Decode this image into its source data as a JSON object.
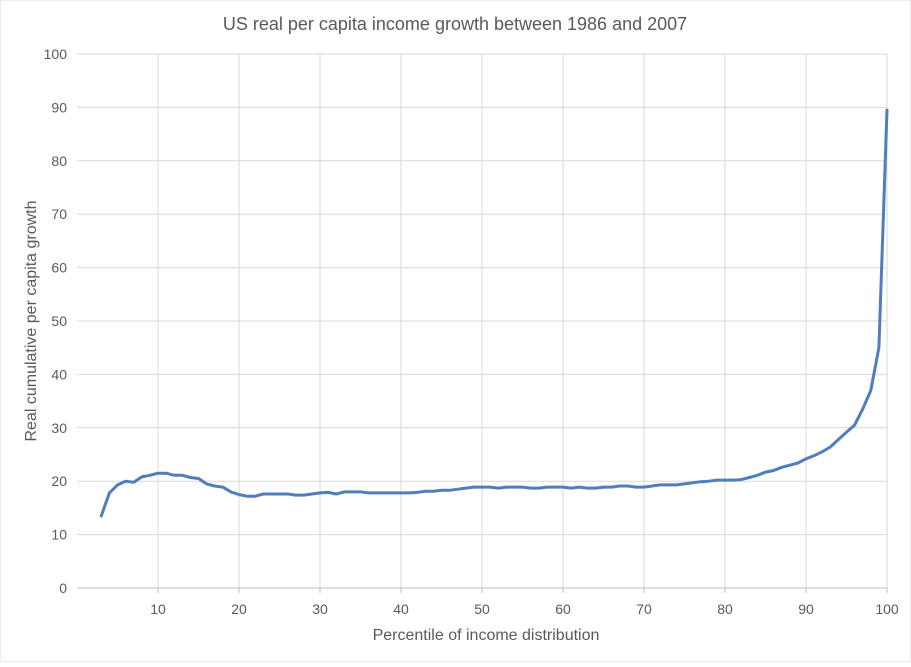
{
  "chart_data": {
    "type": "line",
    "title": "US real per capita income growth between 1986 and 2007",
    "xlabel": "Percentile of income distribution",
    "ylabel": "Real cumulative per capita growth",
    "xlim": [
      0,
      100
    ],
    "ylim": [
      0,
      100
    ],
    "xticks": [
      10,
      20,
      30,
      40,
      50,
      60,
      70,
      80,
      90,
      100
    ],
    "yticks": [
      0,
      10,
      20,
      30,
      40,
      50,
      60,
      70,
      80,
      90,
      100
    ],
    "grid": true,
    "legend": "none",
    "line_color": "#4F7EBB",
    "series": [
      {
        "x": [
          3,
          4,
          5,
          6,
          7,
          8,
          9,
          10,
          11,
          12,
          13,
          14,
          15,
          16,
          17,
          18,
          19,
          20,
          21,
          22,
          23,
          24,
          25,
          26,
          27,
          28,
          29,
          30,
          31,
          32,
          33,
          34,
          35,
          36,
          37,
          38,
          39,
          40,
          41,
          42,
          43,
          44,
          45,
          46,
          47,
          48,
          49,
          50,
          51,
          52,
          53,
          54,
          55,
          56,
          57,
          58,
          59,
          60,
          61,
          62,
          63,
          64,
          65,
          66,
          67,
          68,
          69,
          70,
          71,
          72,
          73,
          74,
          75,
          76,
          77,
          78,
          79,
          80,
          81,
          82,
          83,
          84,
          85,
          86,
          87,
          88,
          89,
          90,
          91,
          92,
          93,
          94,
          95,
          96,
          97,
          98,
          99,
          100
        ],
        "y": [
          13.5,
          17.8,
          19.3,
          20.0,
          19.8,
          20.8,
          21.1,
          21.5,
          21.5,
          21.1,
          21.1,
          20.7,
          20.5,
          19.5,
          19.1,
          18.9,
          18.0,
          17.5,
          17.2,
          17.2,
          17.6,
          17.6,
          17.6,
          17.6,
          17.4,
          17.4,
          17.6,
          17.8,
          17.9,
          17.6,
          18.0,
          18.0,
          18.0,
          17.8,
          17.8,
          17.8,
          17.8,
          17.8,
          17.8,
          17.9,
          18.1,
          18.1,
          18.3,
          18.3,
          18.5,
          18.7,
          18.9,
          18.9,
          18.9,
          18.7,
          18.9,
          18.9,
          18.9,
          18.7,
          18.7,
          18.9,
          18.9,
          18.9,
          18.7,
          18.9,
          18.7,
          18.7,
          18.9,
          18.9,
          19.1,
          19.1,
          18.9,
          18.9,
          19.1,
          19.3,
          19.3,
          19.3,
          19.5,
          19.7,
          19.9,
          20.0,
          20.2,
          20.2,
          20.2,
          20.3,
          20.7,
          21.1,
          21.7,
          22.0,
          22.6,
          23.0,
          23.4,
          24.2,
          24.8,
          25.5,
          26.4,
          27.8,
          29.2,
          30.5,
          33.5,
          37.0,
          45.0,
          89.5
        ]
      }
    ]
  }
}
